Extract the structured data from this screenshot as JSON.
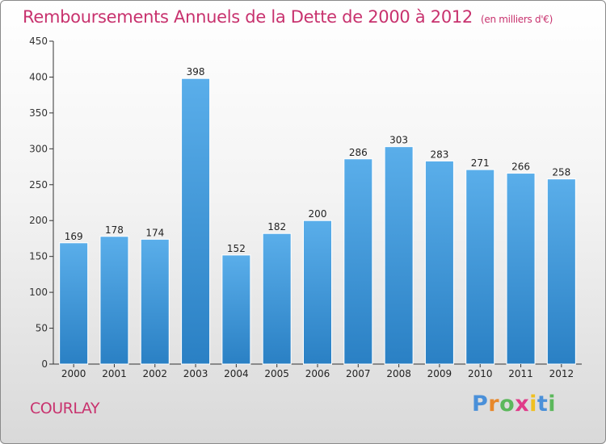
{
  "chart_title": "Remboursements Annuels de la Dette de 2000 à 2012",
  "chart_unit": "(en milliers d'€)",
  "commune": "COURLAY",
  "logo": {
    "letters": [
      "P",
      "r",
      "o",
      "x",
      "i",
      "t",
      "i"
    ],
    "colors": [
      "#4a90d9",
      "#e8882a",
      "#5cb85c",
      "#e03c8a",
      "#f0c020",
      "#4a90d9",
      "#5cb85c"
    ]
  },
  "colors": {
    "bar_top": "#5aaeea",
    "bar_bottom": "#2a80c4",
    "title": "#c8326e"
  },
  "chart_data": {
    "type": "bar",
    "categories": [
      "2000",
      "2001",
      "2002",
      "2003",
      "2004",
      "2005",
      "2006",
      "2007",
      "2008",
      "2009",
      "2010",
      "2011",
      "2012"
    ],
    "values": [
      169,
      178,
      174,
      398,
      152,
      182,
      200,
      286,
      303,
      283,
      271,
      266,
      258
    ],
    "ylim": [
      0,
      450
    ],
    "yticks": [
      0,
      50,
      100,
      150,
      200,
      250,
      300,
      350,
      400,
      450
    ],
    "grid": false,
    "data_labels": true
  }
}
